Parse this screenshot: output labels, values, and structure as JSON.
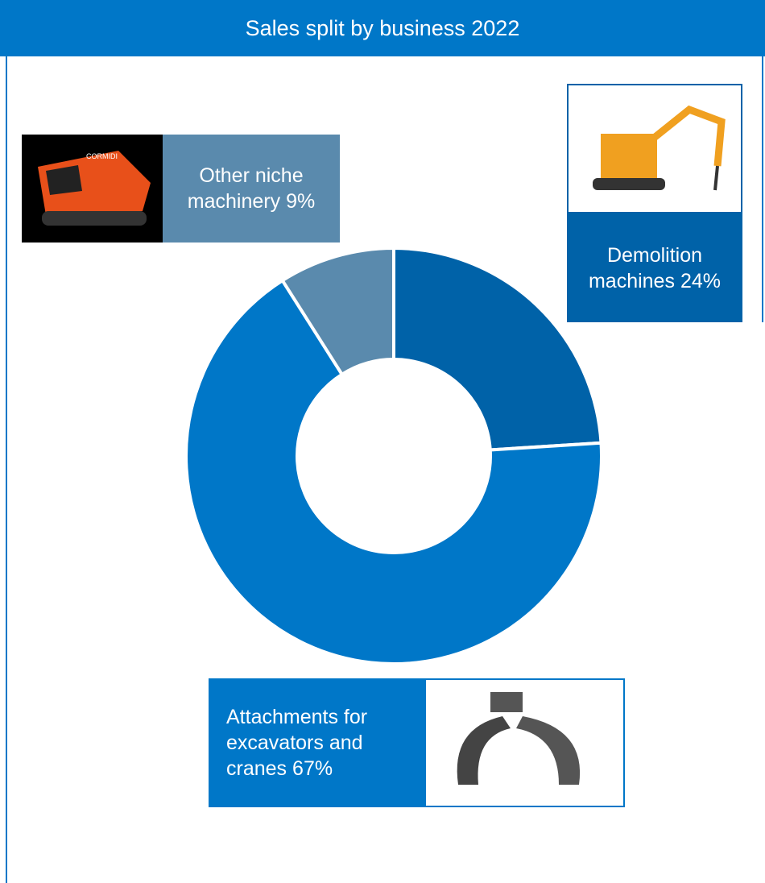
{
  "chart_data": {
    "type": "donut",
    "title": "Sales split by business 2022",
    "categories": [
      "Demolition machines",
      "Attachments for excavators and cranes",
      "Other niche machinery"
    ],
    "values": [
      24,
      67,
      9
    ],
    "value_labels": [
      "24%",
      "67%",
      "9%"
    ],
    "colors": [
      "#0062a8",
      "#0077c8",
      "#5a8aad"
    ]
  }
}
